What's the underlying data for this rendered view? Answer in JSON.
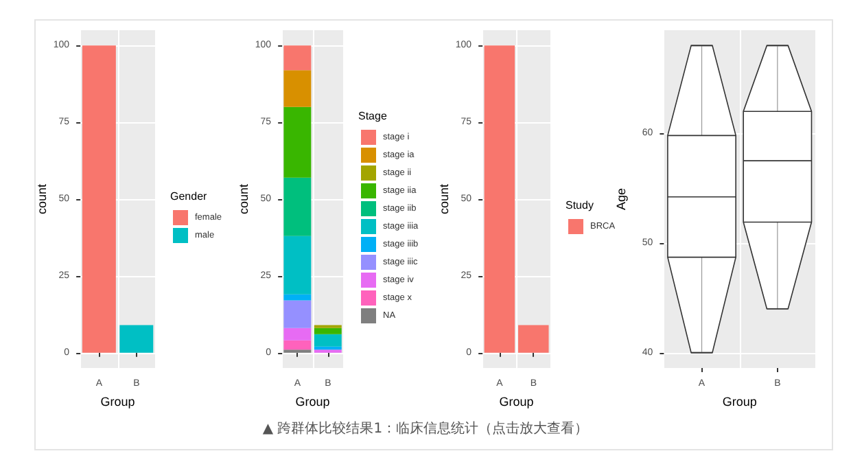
{
  "chart_data": [
    {
      "type": "bar",
      "xlabel": "Group",
      "ylabel": "count",
      "legend_title": "Gender",
      "categories": [
        "A",
        "B"
      ],
      "stacked": true,
      "ylim": [
        -5,
        105
      ],
      "yticks": [
        0,
        25,
        50,
        75,
        100
      ],
      "grid": true,
      "legend": "right",
      "annotations": [
        "▲ 跨群体比较结果1：临床信息统计（点击放大查看）"
      ],
      "series": [
        {
          "name": "male",
          "color": "#00bfc4",
          "values": [
            null,
            9
          ]
        },
        {
          "name": "female",
          "color": "#f8766d",
          "values": [
            100,
            null
          ]
        }
      ]
    },
    {
      "type": "bar",
      "xlabel": "Group",
      "ylabel": "count",
      "legend_title": "Stage",
      "categories": [
        "A",
        "B"
      ],
      "stacked": true,
      "ylim": [
        -5,
        105
      ],
      "yticks": [
        0,
        25,
        50,
        75,
        100
      ],
      "grid": true,
      "legend": "right",
      "series": [
        {
          "name": "NA",
          "color": "#7f7f7f",
          "values": [
            1,
            null
          ]
        },
        {
          "name": "stage x",
          "color": "#ff62bc",
          "values": [
            3,
            null
          ]
        },
        {
          "name": "stage iv",
          "color": "#e76bf3",
          "values": [
            4,
            1
          ]
        },
        {
          "name": "stage iiic",
          "color": "#9590ff",
          "values": [
            9,
            null
          ]
        },
        {
          "name": "stage iiib",
          "color": "#00b0f6",
          "values": [
            2,
            1
          ]
        },
        {
          "name": "stage iiia",
          "color": "#00bfc4",
          "values": [
            19,
            4
          ]
        },
        {
          "name": "stage iib",
          "color": "#00bf7d",
          "values": [
            19,
            null
          ]
        },
        {
          "name": "stage iia",
          "color": "#39b600",
          "values": [
            23,
            2
          ]
        },
        {
          "name": "stage ii",
          "color": "#a3a500",
          "values": [
            null,
            1
          ]
        },
        {
          "name": "stage ia",
          "color": "#d89000",
          "values": [
            12,
            null
          ]
        },
        {
          "name": "stage i",
          "color": "#f8766d",
          "values": [
            8,
            null
          ]
        }
      ]
    },
    {
      "type": "bar",
      "xlabel": "Group",
      "ylabel": "count",
      "legend_title": "Study",
      "categories": [
        "A",
        "B"
      ],
      "stacked": true,
      "ylim": [
        -5,
        105
      ],
      "yticks": [
        0,
        25,
        50,
        75,
        100
      ],
      "grid": true,
      "legend": "right",
      "series": [
        {
          "name": "BRCA",
          "color": "#f8766d",
          "values": [
            100,
            9
          ]
        }
      ]
    },
    {
      "type": "box",
      "xlabel": "Group",
      "ylabel": "Age",
      "categories": [
        "A",
        "B"
      ],
      "ylim": [
        38.6,
        69.4
      ],
      "yticks": [
        40,
        50,
        60
      ],
      "grid": true,
      "boxes": [
        {
          "low": 40,
          "q1": 48.7,
          "median": 54.2,
          "q3": 59.8,
          "high": 68
        },
        {
          "low": 44,
          "q1": 51.9,
          "median": 57.5,
          "q3": 62,
          "high": 68
        }
      ]
    }
  ]
}
